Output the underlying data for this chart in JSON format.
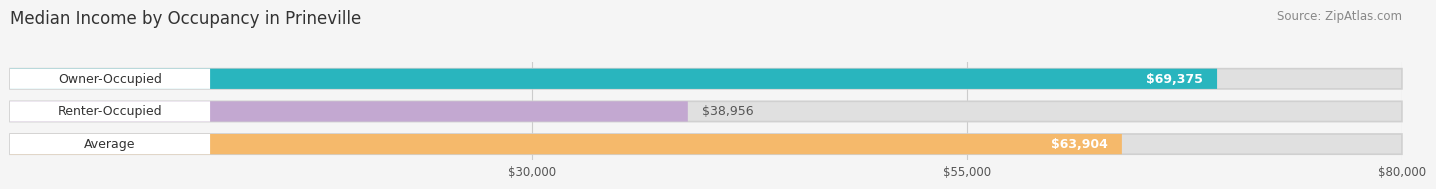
{
  "title": "Median Income by Occupancy in Prineville",
  "source": "Source: ZipAtlas.com",
  "categories": [
    "Owner-Occupied",
    "Renter-Occupied",
    "Average"
  ],
  "values": [
    69375,
    38956,
    63904
  ],
  "bar_colors": [
    "#29b5be",
    "#c3a8d1",
    "#f5b96b"
  ],
  "bar_labels": [
    "$69,375",
    "$38,956",
    "$63,904"
  ],
  "label_text_colors": [
    "#ffffff",
    "#555555",
    "#ffffff"
  ],
  "xlim_min": 0,
  "xlim_max": 80000,
  "xticks": [
    30000,
    55000,
    80000
  ],
  "xtick_labels": [
    "$30,000",
    "$55,000",
    "$80,000"
  ],
  "background_color": "#f5f5f5",
  "bar_bg_color": "#e0e0e0",
  "white_label_bg": "#ffffff",
  "title_fontsize": 12,
  "source_fontsize": 8.5,
  "cat_label_fontsize": 9,
  "val_label_fontsize": 9,
  "tick_fontsize": 8.5,
  "bar_height": 0.62,
  "grid_color": "#cccccc",
  "cat_label_color": "#333333",
  "title_color": "#333333",
  "source_color": "#888888"
}
